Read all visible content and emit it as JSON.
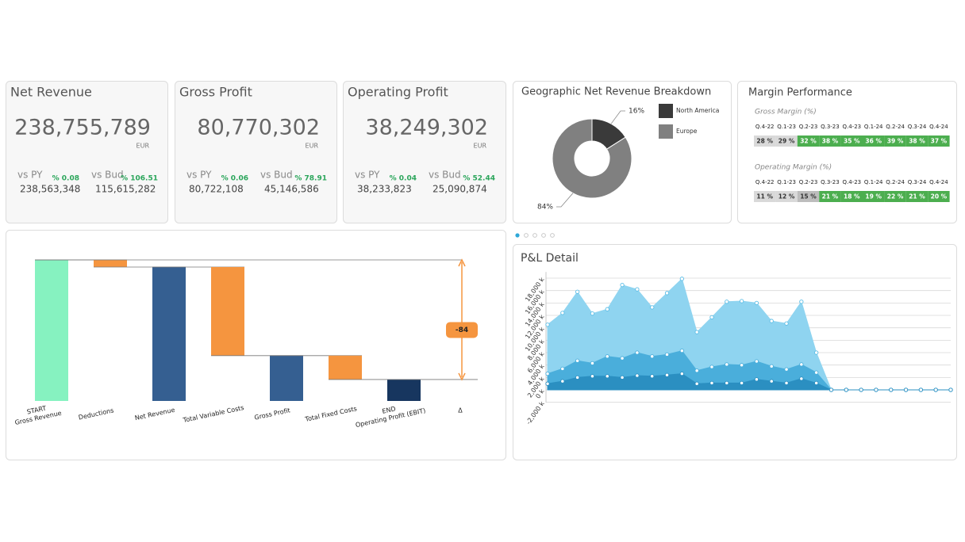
{
  "kpis": [
    {
      "title": "Net Revenue",
      "value": "238,755,789",
      "unit": "EUR",
      "py_label": "vs PY",
      "py_value": "238,563,348",
      "py_change": "% 0.08",
      "bud_label": "vs Bud",
      "bud_value": "115,615,282",
      "bud_change": "% 106.51"
    },
    {
      "title": "Gross Profit",
      "value": "80,770,302",
      "unit": "EUR",
      "py_label": "vs PY",
      "py_value": "80,722,108",
      "py_change": "% 0.06",
      "bud_label": "vs Bud",
      "bud_value": "45,146,586",
      "bud_change": "% 78.91"
    },
    {
      "title": "Operating Profit",
      "value": "38,249,302",
      "unit": "EUR",
      "py_label": "vs PY",
      "py_value": "38,233,823",
      "py_change": "% 0.04",
      "bud_label": "vs Bud",
      "bud_value": "25,090,874",
      "bud_change": "% 52.44"
    }
  ],
  "margin": {
    "title": "Margin Performance",
    "periods": [
      "Q.4-22",
      "Q.1-23",
      "Q.2-23",
      "Q.3-23",
      "Q.4-23",
      "Q.1-24",
      "Q.2-24",
      "Q.3-24",
      "Q.4-24"
    ],
    "rows": [
      {
        "name": "Gross Margin (%)",
        "values": [
          "28 %",
          "29 %",
          "32 %",
          "38 %",
          "35 %",
          "36 %",
          "39 %",
          "38 %",
          "37 %"
        ],
        "colors": [
          "#d9d9d9",
          "#d9d9d9",
          "#4cae4f",
          "#4cae4f",
          "#4cae4f",
          "#4cae4f",
          "#4cae4f",
          "#4cae4f",
          "#4cae4f"
        ]
      },
      {
        "name": "Operating Margin (%)",
        "values": [
          "11 %",
          "12 %",
          "15 %",
          "21 %",
          "18 %",
          "19 %",
          "22 %",
          "21 %",
          "20 %"
        ],
        "colors": [
          "#d9d9d9",
          "#d9d9d9",
          "#bdbdbd",
          "#4cae4f",
          "#4cae4f",
          "#4cae4f",
          "#4cae4f",
          "#4cae4f",
          "#4cae4f"
        ]
      }
    ]
  },
  "chart_data": [
    {
      "type": "pie",
      "title": "Geographic Net Revenue Breakdown",
      "categories": [
        "North America",
        "Europe"
      ],
      "values": [
        16,
        84
      ],
      "value_labels": [
        "16%",
        "84%"
      ],
      "colors": [
        "#3a3a3a",
        "#808080"
      ],
      "donut": true
    },
    {
      "type": "waterfall",
      "categories": [
        [
          "START",
          "Gross Revenue"
        ],
        [
          "Deductions"
        ],
        [
          "Net Revenue"
        ],
        [
          "Total Variable Costs"
        ],
        [
          "Gross Profit"
        ],
        [
          "Total Fixed Costs"
        ],
        [
          "END",
          "Operating Profit (EBIT)"
        ]
      ],
      "values": [
        251.5,
        -12.7,
        238.76,
        -157.99,
        80.77,
        -42.52,
        38.25
      ],
      "measure": [
        "absolute",
        "relative",
        "absolute",
        "relative",
        "absolute",
        "relative",
        "absolute"
      ],
      "colors": [
        "#86f2c0",
        "#f5953f",
        "#355f91",
        "#f5953f",
        "#355f91",
        "#f5953f",
        "#17365f"
      ],
      "delta": {
        "label": "Δ",
        "value": -84,
        "color": "#f5953f"
      }
    },
    {
      "type": "area",
      "title": "P&L Detail",
      "ylim": [
        -2000,
        19000
      ],
      "yticks": [
        {
          "value": -2000,
          "label": "-2,000 k"
        },
        {
          "value": 0,
          "label": "0 k"
        },
        {
          "value": 2000,
          "label": "2,000 k"
        },
        {
          "value": 4000,
          "label": "4,000 k"
        },
        {
          "value": 6000,
          "label": "6,000 k"
        },
        {
          "value": 8000,
          "label": "8,000 k"
        },
        {
          "value": 10000,
          "label": "10,000 k"
        },
        {
          "value": 12000,
          "label": "12,000 k"
        },
        {
          "value": 14000,
          "label": "14,000 k"
        },
        {
          "value": 16000,
          "label": "16,000 k"
        },
        {
          "value": 18000,
          "label": "18,000 k"
        }
      ],
      "grid": true,
      "series": [
        {
          "color": "#8fd4f0",
          "values": [
            10500,
            12400,
            15800,
            12300,
            13000,
            16900,
            16200,
            13300,
            15600,
            17900,
            9300,
            11700,
            14200,
            14300,
            14000,
            11100,
            10700,
            14200,
            6000,
            0,
            0,
            0,
            0,
            0,
            0,
            0,
            0,
            0
          ]
        },
        {
          "color": "#4aaedb",
          "values": [
            2600,
            3400,
            4700,
            4300,
            5400,
            5100,
            6000,
            5400,
            5700,
            6300,
            3100,
            3700,
            4100,
            4000,
            4600,
            3800,
            3300,
            4100,
            2800,
            0,
            0,
            0,
            0,
            0,
            0,
            0,
            0,
            0
          ]
        },
        {
          "color": "#2b8fc1",
          "values": [
            1000,
            1400,
            2000,
            2200,
            2200,
            2000,
            2300,
            2200,
            2400,
            2600,
            1000,
            1100,
            1100,
            1100,
            1700,
            1400,
            1100,
            1800,
            1100,
            0,
            0,
            0,
            0,
            0,
            0,
            0,
            0,
            0
          ]
        }
      ]
    }
  ]
}
